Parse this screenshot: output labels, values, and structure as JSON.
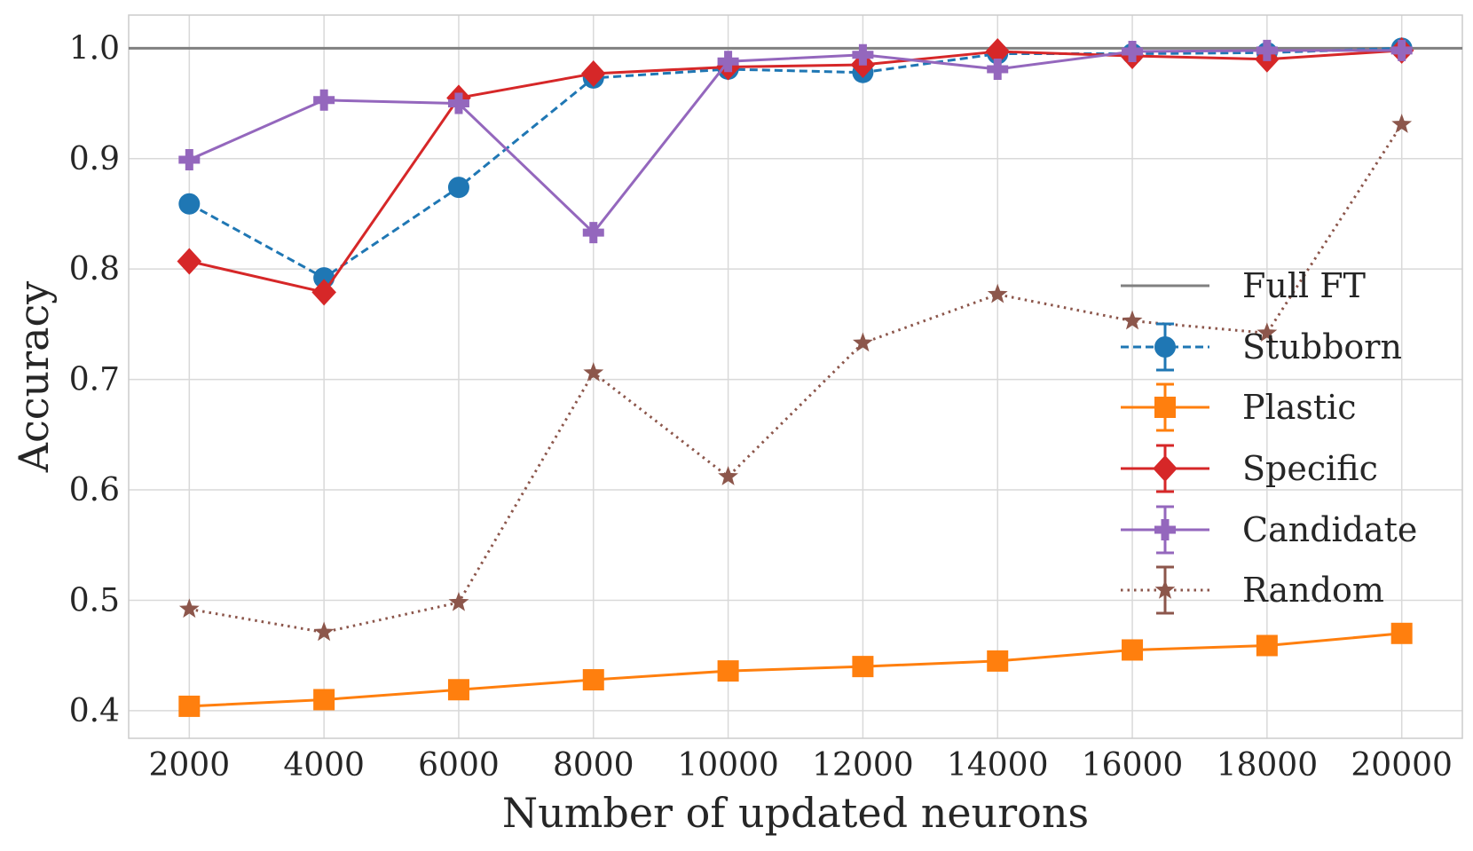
{
  "chart_data": {
    "type": "line",
    "title": "",
    "xlabel": "Number of updated neurons",
    "ylabel": "Accuracy",
    "x": [
      2000,
      4000,
      6000,
      8000,
      10000,
      12000,
      14000,
      16000,
      18000,
      20000
    ],
    "x_tick_labels": [
      "2000",
      "4000",
      "6000",
      "8000",
      "10000",
      "12000",
      "14000",
      "16000",
      "18000",
      "20000"
    ],
    "y_tick_values": [
      0.4,
      0.5,
      0.6,
      0.7,
      0.8,
      0.9,
      1.0
    ],
    "y_tick_labels": [
      "0.4",
      "0.5",
      "0.6",
      "0.7",
      "0.8",
      "0.9",
      "1.0"
    ],
    "xlim": [
      1100,
      20900
    ],
    "ylim": [
      0.375,
      1.03
    ],
    "grid": true,
    "legend_position": "center-right",
    "reference_line": {
      "name": "Full FT",
      "y": 1.0,
      "color": "#808080"
    },
    "series": [
      {
        "name": "Stubborn",
        "color": "#1f77b4",
        "marker": "circle",
        "line": "dashed",
        "values": [
          0.859,
          0.792,
          0.874,
          0.973,
          0.981,
          0.978,
          0.995,
          0.995,
          0.996,
          1.0
        ]
      },
      {
        "name": "Plastic",
        "color": "#ff7f0e",
        "marker": "square",
        "line": "solid",
        "values": [
          0.404,
          0.41,
          0.419,
          0.428,
          0.436,
          0.44,
          0.445,
          0.455,
          0.459,
          0.47
        ]
      },
      {
        "name": "Specific",
        "color": "#d62728",
        "marker": "diamond",
        "line": "solid",
        "values": [
          0.807,
          0.779,
          0.955,
          0.977,
          0.983,
          0.985,
          0.997,
          0.993,
          0.99,
          0.998
        ]
      },
      {
        "name": "Candidate",
        "color": "#9467bd",
        "marker": "plus",
        "line": "solid",
        "values": [
          0.899,
          0.953,
          0.95,
          0.833,
          0.988,
          0.994,
          0.981,
          0.997,
          0.998,
          0.998
        ]
      },
      {
        "name": "Random",
        "color": "#8c564b",
        "marker": "star",
        "line": "dotted",
        "values": [
          0.492,
          0.471,
          0.498,
          0.706,
          0.612,
          0.733,
          0.777,
          0.753,
          0.742,
          0.931
        ]
      }
    ]
  }
}
